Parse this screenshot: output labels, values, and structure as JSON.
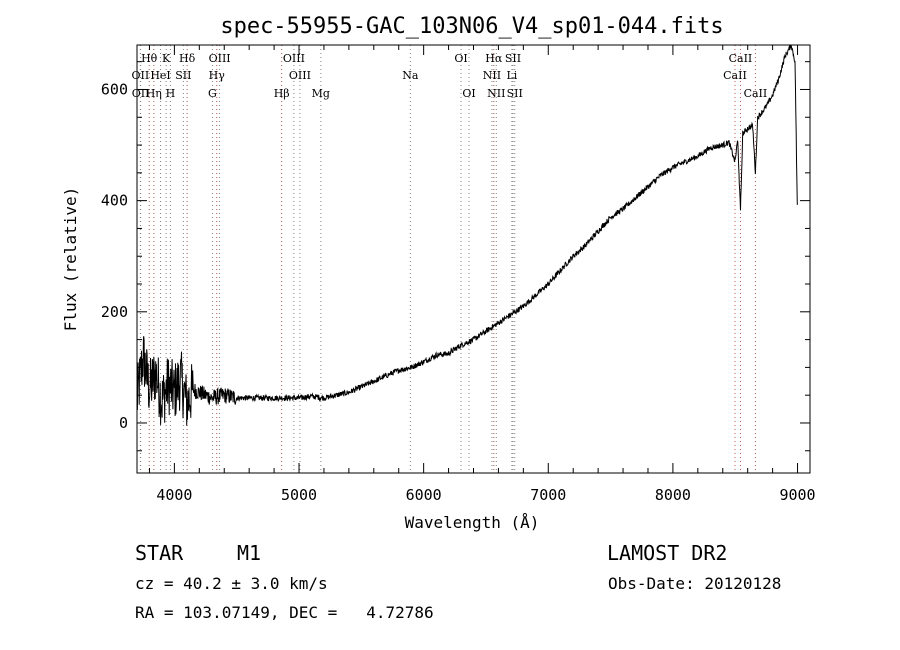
{
  "chart_data": {
    "type": "line",
    "title": "spec-55955-GAC_103N06_V4_sp01-044.fits",
    "xlabel": "Wavelength (Å)",
    "ylabel": "Flux (relative)",
    "xlim": [
      3700,
      9100
    ],
    "ylim": [
      -90,
      680
    ],
    "xticks": [
      4000,
      5000,
      6000,
      7000,
      8000,
      9000
    ],
    "yticks": [
      0,
      200,
      400,
      600
    ],
    "grid": false,
    "legend": "none",
    "series": [
      {
        "x": [
          3700,
          3750,
          3800,
          3850,
          3900,
          3950,
          4000,
          4050,
          4100,
          4150,
          4200,
          4300,
          4400,
          4500,
          4600,
          4700,
          4800,
          4900,
          5000,
          5100,
          5200,
          5300,
          5400,
          5500,
          5600,
          5700,
          5800,
          5900,
          6000,
          6100,
          6200,
          6300,
          6400,
          6500,
          6600,
          6700,
          6800,
          6900,
          7000,
          7100,
          7200,
          7300,
          7400,
          7500,
          7600,
          7700,
          7800,
          7900,
          8000,
          8100,
          8200,
          8300,
          8400,
          8450,
          8498,
          8520,
          8542,
          8560,
          8600,
          8640,
          8662,
          8680,
          8700,
          8750,
          8800,
          8850,
          8900,
          8950,
          8980,
          9000
        ],
        "y": [
          40,
          120,
          60,
          90,
          40,
          70,
          55,
          80,
          35,
          60,
          55,
          45,
          50,
          45,
          45,
          45,
          45,
          45,
          45,
          48,
          45,
          50,
          55,
          65,
          75,
          85,
          95,
          100,
          110,
          122,
          125,
          140,
          150,
          165,
          180,
          195,
          210,
          230,
          250,
          275,
          300,
          320,
          345,
          370,
          385,
          405,
          425,
          445,
          460,
          470,
          480,
          495,
          500,
          505,
          470,
          510,
          380,
          520,
          530,
          535,
          450,
          550,
          555,
          570,
          590,
          620,
          660,
          680,
          650,
          360
        ]
      }
    ],
    "spectral_lines": [
      {
        "label": "Hθ",
        "x": 3798,
        "row": 0,
        "color": "#c05050"
      },
      {
        "label": "K",
        "x": 3934,
        "row": 0,
        "color": "#808080"
      },
      {
        "label": "Hδ",
        "x": 4102,
        "row": 0,
        "color": "#c05050"
      },
      {
        "label": "OIII",
        "x": 4363,
        "row": 0,
        "color": "#808080"
      },
      {
        "label": "OIII",
        "x": 4959,
        "row": 0,
        "color": "#808080"
      },
      {
        "label": "OI",
        "x": 6300,
        "row": 0,
        "color": "#808080"
      },
      {
        "label": "Hα",
        "x": 6563,
        "row": 0,
        "color": "#c05050"
      },
      {
        "label": "SII",
        "x": 6717,
        "row": 0,
        "color": "#808080"
      },
      {
        "label": "CaII",
        "x": 8542,
        "row": 0,
        "color": "#c05050"
      },
      {
        "label": "OII",
        "x": 3727,
        "row": 1,
        "color": "#808080"
      },
      {
        "label": "HeI",
        "x": 3889,
        "row": 1,
        "color": "#808080"
      },
      {
        "label": "SII",
        "x": 4072,
        "row": 1,
        "color": "#808080"
      },
      {
        "label": "Hγ",
        "x": 4340,
        "row": 1,
        "color": "#c05050"
      },
      {
        "label": "OIII",
        "x": 5007,
        "row": 1,
        "color": "#808080"
      },
      {
        "label": "Na",
        "x": 5893,
        "row": 1,
        "color": "#808080"
      },
      {
        "label": "NII",
        "x": 6548,
        "row": 1,
        "color": "#808080"
      },
      {
        "label": "Li",
        "x": 6708,
        "row": 1,
        "color": "#808080"
      },
      {
        "label": "CaII",
        "x": 8498,
        "row": 1,
        "color": "#c05050"
      },
      {
        "label": "OII",
        "x": 3729,
        "row": 2,
        "color": "#808080"
      },
      {
        "label": "Hη",
        "x": 3835,
        "row": 2,
        "color": "#c05050"
      },
      {
        "label": "H",
        "x": 3968,
        "row": 2,
        "color": "#808080"
      },
      {
        "label": "G",
        "x": 4305,
        "row": 2,
        "color": "#808080"
      },
      {
        "label": "Hβ",
        "x": 4861,
        "row": 2,
        "color": "#c05050"
      },
      {
        "label": "Mg",
        "x": 5175,
        "row": 2,
        "color": "#808080"
      },
      {
        "label": "OI",
        "x": 6364,
        "row": 2,
        "color": "#808080"
      },
      {
        "label": "NII",
        "x": 6583,
        "row": 2,
        "color": "#808080"
      },
      {
        "label": "SII",
        "x": 6731,
        "row": 2,
        "color": "#808080"
      },
      {
        "label": "CaII",
        "x": 8662,
        "row": 2,
        "color": "#c05050"
      }
    ]
  },
  "info": {
    "object_class": "STAR",
    "subclass": "M1",
    "survey": "LAMOST DR2",
    "redshift_line": "cz = 40.2 ± 3.0 km/s",
    "obs_date": "Obs-Date: 20120128",
    "coords": "RA = 103.07149, DEC =   4.72786"
  },
  "colors": {
    "foreground": "#000000",
    "background": "#ffffff",
    "line_red": "#c05050",
    "line_gray": "#808080"
  }
}
